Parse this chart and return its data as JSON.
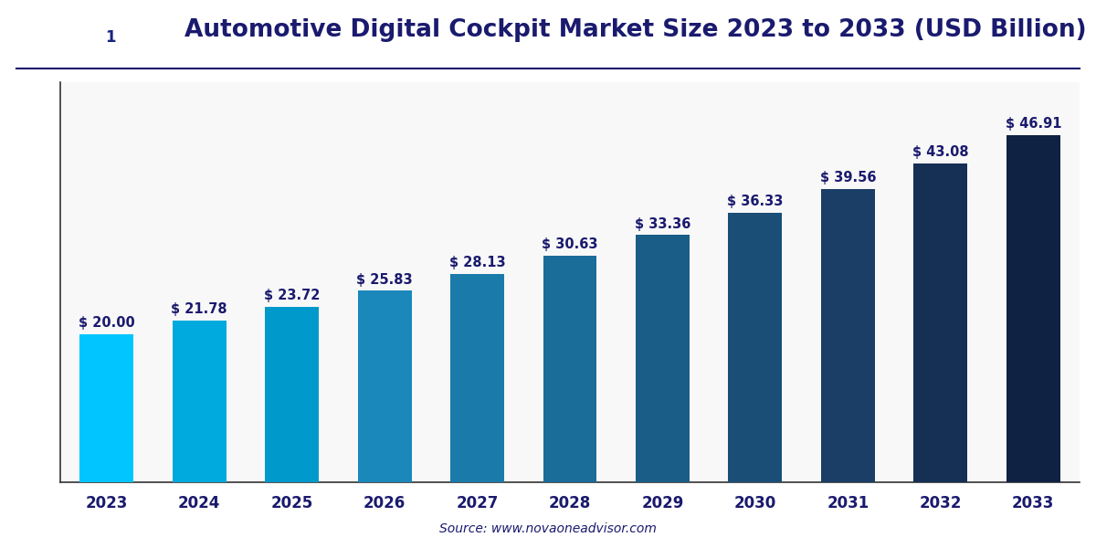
{
  "title": "Automotive Digital Cockpit Market Size 2023 to 2033 (USD Billion)",
  "categories": [
    "2023",
    "2024",
    "2025",
    "2026",
    "2027",
    "2028",
    "2029",
    "2030",
    "2031",
    "2032",
    "2033"
  ],
  "values": [
    20.0,
    21.78,
    23.72,
    25.83,
    28.13,
    30.63,
    33.36,
    36.33,
    39.56,
    43.08,
    46.91
  ],
  "labels": [
    "$ 20.00",
    "$ 21.78",
    "$ 23.72",
    "$ 25.83",
    "$ 28.13",
    "$ 30.63",
    "$ 33.36",
    "$ 36.33",
    "$ 39.56",
    "$ 43.08",
    "$ 46.91"
  ],
  "bar_colors": [
    "#00C5FF",
    "#00AADE",
    "#0099CC",
    "#1A88BB",
    "#1A7BAA",
    "#1A6C99",
    "#1A5E88",
    "#1A4E77",
    "#1A3E66",
    "#152F55",
    "#0F2244"
  ],
  "background_color": "#FFFFFF",
  "plot_bg_color": "#F8F8F8",
  "grid_color": "#D8D8D8",
  "title_color": "#1A1A6E",
  "label_color": "#1A1A6E",
  "tick_color": "#1A1A6E",
  "source_text": "Source: www.novaoneadvisor.com",
  "source_color": "#1A1A6E",
  "ylim": [
    0,
    54
  ],
  "title_fontsize": 19,
  "label_fontsize": 10.5,
  "tick_fontsize": 12,
  "logo_bg": "#1A237E",
  "logo_text_color": "#FFFFFF",
  "logo_i_bg": "#FFFFFF",
  "logo_i_color": "#1A237E",
  "divider_color": "#1A1A6E",
  "bottom_border_color": "#333333"
}
